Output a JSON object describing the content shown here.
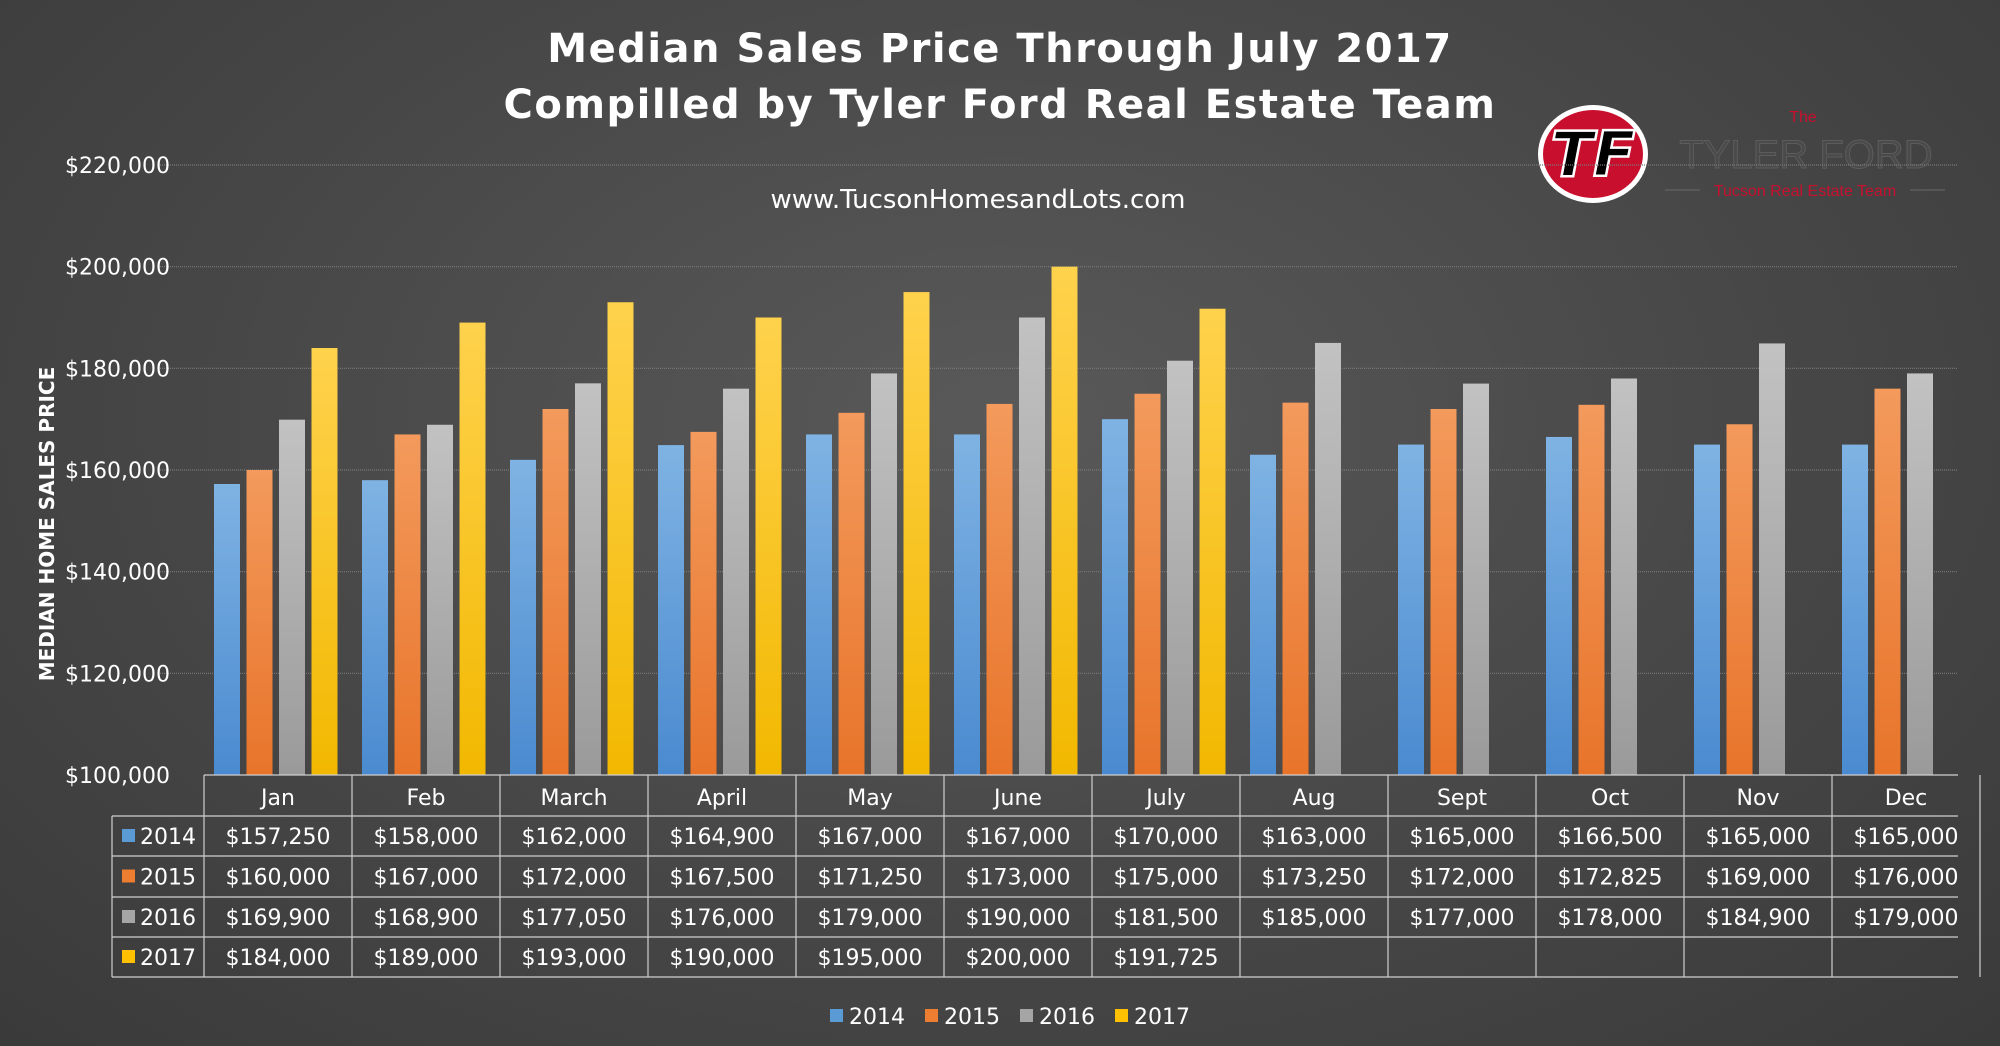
{
  "chart_data": {
    "type": "bar",
    "title": "Median Sales Price Through July 2017",
    "subtitle": "Compilled by Tyler Ford Real Estate Team",
    "website": "www.TucsonHomesandLots.com",
    "ylabel": "MEDIAN HOME SALES PRICE",
    "xlabel": "",
    "ylim": [
      100000,
      220000
    ],
    "yticks": [
      100000,
      120000,
      140000,
      160000,
      180000,
      200000,
      220000
    ],
    "ytick_labels": [
      "$100,000",
      "$120,000",
      "$140,000",
      "$160,000",
      "$180,000",
      "$200,000",
      "$220,000"
    ],
    "grid": true,
    "legend_position": "bottom",
    "categories": [
      "Jan",
      "Feb",
      "March",
      "April",
      "May",
      "June",
      "July",
      "Aug",
      "Sept",
      "Oct",
      "Nov",
      "Dec"
    ],
    "series": [
      {
        "name": "2014",
        "color": "#5b9bd5",
        "values": [
          157250,
          158000,
          162000,
          164900,
          167000,
          167000,
          170000,
          163000,
          165000,
          166500,
          165000,
          165000
        ],
        "labels": [
          "$157,250",
          "$158,000",
          "$162,000",
          "$164,900",
          "$167,000",
          "$167,000",
          "$170,000",
          "$163,000",
          "$165,000",
          "$166,500",
          "$165,000",
          "$165,000"
        ]
      },
      {
        "name": "2015",
        "color": "#ed7d31",
        "values": [
          160000,
          167000,
          172000,
          167500,
          171250,
          173000,
          175000,
          173250,
          172000,
          172825,
          169000,
          176000
        ],
        "labels": [
          "$160,000",
          "$167,000",
          "$172,000",
          "$167,500",
          "$171,250",
          "$173,000",
          "$175,000",
          "$173,250",
          "$172,000",
          "$172,825",
          "$169,000",
          "$176,000"
        ]
      },
      {
        "name": "2016",
        "color": "#a5a5a5",
        "values": [
          169900,
          168900,
          177050,
          176000,
          179000,
          190000,
          181500,
          185000,
          177000,
          178000,
          184900,
          179000
        ],
        "labels": [
          "$169,900",
          "$168,900",
          "$177,050",
          "$176,000",
          "$179,000",
          "$190,000",
          "$181,500",
          "$185,000",
          "$177,000",
          "$178,000",
          "$184,900",
          "$179,000"
        ]
      },
      {
        "name": "2017",
        "color": "#ffc000",
        "values": [
          184000,
          189000,
          193000,
          190000,
          195000,
          200000,
          191725,
          null,
          null,
          null,
          null,
          null
        ],
        "labels": [
          "$184,000",
          "$189,000",
          "$193,000",
          "$190,000",
          "$195,000",
          "$200,000",
          "$191,725",
          "",
          "",
          "",
          "",
          ""
        ]
      }
    ]
  },
  "logo": {
    "monogram": "TF",
    "the": "The",
    "name": "TYLER FORD",
    "tagline": "Tucson Real Estate Team"
  }
}
